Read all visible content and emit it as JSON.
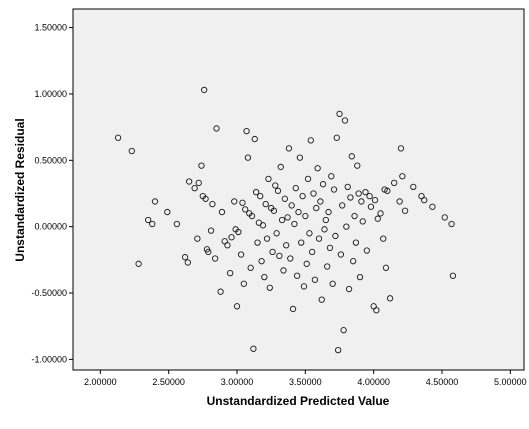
{
  "chart_data": {
    "type": "scatter",
    "xlabel": "Unstandardized Predicted Value",
    "ylabel": "Unstandardized Residual",
    "xlim": [
      1.8,
      5.1
    ],
    "ylim": [
      -1.08,
      1.64
    ],
    "x_ticks": [
      "2.00000",
      "2.50000",
      "3.00000",
      "3.50000",
      "4.00000",
      "4.50000",
      "5.00000"
    ],
    "y_ticks": [
      "1.50000",
      "1.00000",
      "0.50000",
      "0.00000",
      "-0.50000",
      "-1.00000"
    ],
    "grid": false,
    "plot_background": "#F0F0F0",
    "marker_color": "#1A1A1A",
    "points": [
      [
        2.13,
        0.67
      ],
      [
        2.23,
        0.57
      ],
      [
        2.28,
        -0.28
      ],
      [
        2.35,
        0.05
      ],
      [
        2.38,
        0.02
      ],
      [
        2.4,
        0.19
      ],
      [
        2.49,
        0.11
      ],
      [
        2.56,
        0.02
      ],
      [
        2.62,
        -0.23
      ],
      [
        2.64,
        -0.27
      ],
      [
        2.65,
        0.34
      ],
      [
        2.69,
        0.29
      ],
      [
        2.71,
        -0.09
      ],
      [
        2.72,
        0.33
      ],
      [
        2.74,
        0.46
      ],
      [
        2.75,
        0.23
      ],
      [
        2.76,
        1.03
      ],
      [
        2.77,
        0.21
      ],
      [
        2.78,
        -0.17
      ],
      [
        2.79,
        -0.19
      ],
      [
        2.81,
        -0.03
      ],
      [
        2.82,
        0.17
      ],
      [
        2.84,
        -0.24
      ],
      [
        2.85,
        0.74
      ],
      [
        2.88,
        -0.49
      ],
      [
        2.89,
        0.11
      ],
      [
        2.91,
        -0.11
      ],
      [
        2.93,
        -0.14
      ],
      [
        2.95,
        -0.35
      ],
      [
        2.96,
        -0.08
      ],
      [
        2.98,
        0.19
      ],
      [
        2.99,
        -0.02
      ],
      [
        3.0,
        -0.6
      ],
      [
        3.01,
        -0.04
      ],
      [
        3.03,
        -0.21
      ],
      [
        3.04,
        0.18
      ],
      [
        3.05,
        -0.43
      ],
      [
        3.06,
        0.13
      ],
      [
        3.07,
        0.72
      ],
      [
        3.08,
        0.52
      ],
      [
        3.09,
        0.1
      ],
      [
        3.1,
        -0.31
      ],
      [
        3.11,
        0.08
      ],
      [
        3.12,
        -0.92
      ],
      [
        3.13,
        0.66
      ],
      [
        3.14,
        0.26
      ],
      [
        3.15,
        -0.12
      ],
      [
        3.16,
        0.03
      ],
      [
        3.17,
        0.23
      ],
      [
        3.18,
        -0.26
      ],
      [
        3.19,
        0.01
      ],
      [
        3.2,
        -0.38
      ],
      [
        3.21,
        0.17
      ],
      [
        3.22,
        -0.09
      ],
      [
        3.23,
        0.36
      ],
      [
        3.24,
        -0.46
      ],
      [
        3.25,
        0.14
      ],
      [
        3.26,
        -0.19
      ],
      [
        3.27,
        0.12
      ],
      [
        3.28,
        0.31
      ],
      [
        3.29,
        -0.05
      ],
      [
        3.3,
        0.27
      ],
      [
        3.31,
        -0.22
      ],
      [
        3.32,
        0.45
      ],
      [
        3.33,
        0.05
      ],
      [
        3.34,
        -0.33
      ],
      [
        3.35,
        0.21
      ],
      [
        3.36,
        -0.14
      ],
      [
        3.37,
        0.07
      ],
      [
        3.38,
        0.59
      ],
      [
        3.39,
        -0.24
      ],
      [
        3.4,
        0.16
      ],
      [
        3.41,
        -0.62
      ],
      [
        3.42,
        0.02
      ],
      [
        3.43,
        0.29
      ],
      [
        3.44,
        -0.37
      ],
      [
        3.45,
        0.11
      ],
      [
        3.46,
        0.52
      ],
      [
        3.47,
        -0.12
      ],
      [
        3.48,
        0.23
      ],
      [
        3.49,
        -0.45
      ],
      [
        3.5,
        0.08
      ],
      [
        3.51,
        -0.28
      ],
      [
        3.52,
        0.36
      ],
      [
        3.53,
        -0.05
      ],
      [
        3.54,
        0.65
      ],
      [
        3.55,
        -0.19
      ],
      [
        3.56,
        0.25
      ],
      [
        3.57,
        -0.4
      ],
      [
        3.58,
        0.14
      ],
      [
        3.59,
        0.44
      ],
      [
        3.6,
        -0.09
      ],
      [
        3.61,
        0.19
      ],
      [
        3.62,
        -0.55
      ],
      [
        3.63,
        0.32
      ],
      [
        3.64,
        -0.02
      ],
      [
        3.65,
        0.05
      ],
      [
        3.66,
        -0.3
      ],
      [
        3.67,
        0.11
      ],
      [
        3.68,
        -0.16
      ],
      [
        3.69,
        0.38
      ],
      [
        3.7,
        -0.43
      ],
      [
        3.71,
        0.28
      ],
      [
        3.72,
        -0.07
      ],
      [
        3.73,
        0.67
      ],
      [
        3.74,
        -0.93
      ],
      [
        3.75,
        0.85
      ],
      [
        3.76,
        -0.21
      ],
      [
        3.77,
        0.16
      ],
      [
        3.78,
        -0.78
      ],
      [
        3.79,
        0.8
      ],
      [
        3.8,
        0.0
      ],
      [
        3.81,
        0.3
      ],
      [
        3.82,
        -0.47
      ],
      [
        3.83,
        0.22
      ],
      [
        3.84,
        0.53
      ],
      [
        3.85,
        -0.26
      ],
      [
        3.86,
        0.08
      ],
      [
        3.87,
        -0.12
      ],
      [
        3.88,
        0.46
      ],
      [
        3.89,
        0.25
      ],
      [
        3.9,
        -0.38
      ],
      [
        3.91,
        0.19
      ],
      [
        3.92,
        0.04
      ],
      [
        3.94,
        0.26
      ],
      [
        3.95,
        -0.18
      ],
      [
        3.97,
        0.23
      ],
      [
        3.98,
        0.15
      ],
      [
        4.0,
        -0.6
      ],
      [
        4.01,
        0.2
      ],
      [
        4.02,
        -0.63
      ],
      [
        4.03,
        0.06
      ],
      [
        4.05,
        0.1
      ],
      [
        4.07,
        -0.09
      ],
      [
        4.08,
        0.28
      ],
      [
        4.09,
        -0.31
      ],
      [
        4.1,
        0.27
      ],
      [
        4.12,
        -0.54
      ],
      [
        4.15,
        0.33
      ],
      [
        4.19,
        0.19
      ],
      [
        4.2,
        0.59
      ],
      [
        4.21,
        0.38
      ],
      [
        4.23,
        0.12
      ],
      [
        4.29,
        0.3
      ],
      [
        4.35,
        0.23
      ],
      [
        4.37,
        0.2
      ],
      [
        4.43,
        0.15
      ],
      [
        4.52,
        0.07
      ],
      [
        4.57,
        0.02
      ],
      [
        4.58,
        -0.37
      ]
    ]
  }
}
